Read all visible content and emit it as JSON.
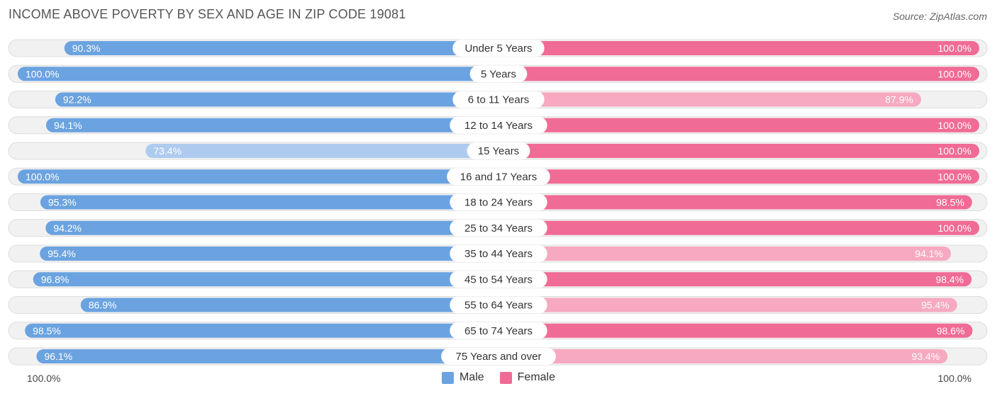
{
  "header": {
    "title": "INCOME ABOVE POVERTY BY SEX AND AGE IN ZIP CODE 19081",
    "source": "Source: ZipAtlas.com"
  },
  "axis": {
    "left_label": "100.0%",
    "right_label": "100.0%"
  },
  "legend": {
    "male_label": "Male",
    "female_label": "Female"
  },
  "colors": {
    "male_strong": "#6ba3e0",
    "male_light": "#aecbef",
    "female_strong": "#f06b95",
    "female_light": "#f6a9c0",
    "background_pill": "#f1f1f1"
  },
  "chart_data": {
    "type": "bar",
    "orientation": "horizontal-diverging",
    "title": "INCOME ABOVE POVERTY BY SEX AND AGE IN ZIP CODE 19081",
    "categories": [
      "Under 5 Years",
      "5 Years",
      "6 to 11 Years",
      "12 to 14 Years",
      "15 Years",
      "16 and 17 Years",
      "18 to 24 Years",
      "25 to 34 Years",
      "35 to 44 Years",
      "45 to 54 Years",
      "55 to 64 Years",
      "65 to 74 Years",
      "75 Years and over"
    ],
    "series": [
      {
        "name": "Male",
        "side": "left",
        "values": [
          90.3,
          100.0,
          92.2,
          94.1,
          73.4,
          100.0,
          95.3,
          94.2,
          95.4,
          96.8,
          86.9,
          98.5,
          96.1
        ],
        "labels": [
          "90.3%",
          "100.0%",
          "92.2%",
          "94.1%",
          "73.4%",
          "100.0%",
          "95.3%",
          "94.2%",
          "95.4%",
          "96.8%",
          "86.9%",
          "98.5%",
          "96.1%"
        ]
      },
      {
        "name": "Female",
        "side": "right",
        "values": [
          100.0,
          100.0,
          87.9,
          100.0,
          100.0,
          100.0,
          98.5,
          100.0,
          94.1,
          98.4,
          95.4,
          98.6,
          93.4
        ],
        "labels": [
          "100.0%",
          "100.0%",
          "87.9%",
          "100.0%",
          "100.0%",
          "100.0%",
          "98.5%",
          "100.0%",
          "94.1%",
          "98.4%",
          "95.4%",
          "98.6%",
          "93.4%"
        ]
      }
    ],
    "xlim": [
      0,
      100
    ],
    "xlabel": "",
    "ylabel": "",
    "legend_position": "bottom-center"
  }
}
